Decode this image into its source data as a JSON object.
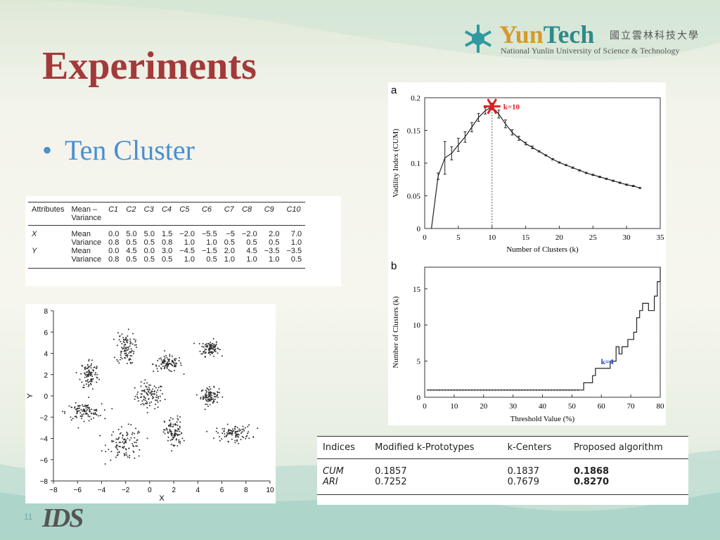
{
  "slide": {
    "title": "Experiments",
    "bullet_symbol": "•",
    "bullet_text": "Ten Cluster",
    "slide_number": "11",
    "footer_logo_text": "IDS"
  },
  "logo": {
    "yun": "Yun",
    "tech": "Tech",
    "cn_name": "國立雲林科技大學",
    "en_name": "National Yunlin University of Science & Technology"
  },
  "attributes_table": {
    "headers": [
      "Attributes",
      "Mean –\nVariance",
      "C1",
      "C2",
      "C3",
      "C4",
      "C5",
      "C6",
      "C7",
      "C8",
      "C9",
      "C10"
    ],
    "rows": [
      [
        "X",
        "Mean",
        "0.0",
        "5.0",
        "5.0",
        "1.5",
        "−2.0",
        "−5.5",
        "−5",
        "−2.0",
        "2.0",
        "7.0"
      ],
      [
        "",
        "Variance",
        "0.8",
        "0.5",
        "0.5",
        "0.8",
        "1.0",
        "1.0",
        "0.5",
        "0.5",
        "0.5",
        "1.0"
      ],
      [
        "Y",
        "Mean",
        "0.0",
        "4.5",
        "0.0",
        "3.0",
        "−4.5",
        "−1.5",
        "2.0",
        "4.5",
        "−3.5",
        "−3.5"
      ],
      [
        "",
        "Variance",
        "0.8",
        "0.5",
        "0.5",
        "0.5",
        "1.0",
        "0.5",
        "1.0",
        "1.0",
        "1.0",
        "0.5"
      ]
    ]
  },
  "comparison_table": {
    "headers": [
      "Indices",
      "Modified k-Prototypes",
      "k-Centers",
      "Proposed algorithm"
    ],
    "rows": [
      [
        "CUM",
        "0.1857",
        "0.1837",
        "0.1868"
      ],
      [
        "ARI",
        "0.7252",
        "0.7679",
        "0.8270"
      ]
    ]
  },
  "chart_data": [
    {
      "type": "scatter",
      "xlabel": "X",
      "ylabel": "Y",
      "xlim": [
        -8,
        10
      ],
      "ylim": [
        -8,
        8
      ],
      "xticks": [
        -8,
        -6,
        -4,
        -2,
        0,
        2,
        4,
        6,
        8,
        10
      ],
      "yticks": [
        -8,
        -6,
        -4,
        -2,
        0,
        2,
        4,
        6,
        8
      ],
      "clusters": [
        {
          "mx": 0.0,
          "my": 0.0,
          "sx": 0.8,
          "sy": 0.8
        },
        {
          "mx": 5.0,
          "my": 4.5,
          "sx": 0.5,
          "sy": 0.5
        },
        {
          "mx": 5.0,
          "my": 0.0,
          "sx": 0.5,
          "sy": 0.5
        },
        {
          "mx": 1.5,
          "my": 3.0,
          "sx": 0.8,
          "sy": 0.5
        },
        {
          "mx": -2.0,
          "my": -4.5,
          "sx": 1.0,
          "sy": 1.0
        },
        {
          "mx": -5.5,
          "my": -1.5,
          "sx": 1.0,
          "sy": 0.5
        },
        {
          "mx": -5.0,
          "my": 2.0,
          "sx": 0.5,
          "sy": 1.0
        },
        {
          "mx": -2.0,
          "my": 4.5,
          "sx": 0.5,
          "sy": 1.0
        },
        {
          "mx": 2.0,
          "my": -3.5,
          "sx": 0.5,
          "sy": 1.0
        },
        {
          "mx": 7.0,
          "my": -3.5,
          "sx": 1.0,
          "sy": 0.5
        }
      ]
    },
    {
      "type": "line",
      "panel_label": "a",
      "xlabel": "Number of Clusters (k)",
      "ylabel": "Vadility Index (CUM)",
      "xlim": [
        0,
        35
      ],
      "ylim": [
        0,
        0.2
      ],
      "xticks": [
        0,
        5,
        10,
        15,
        20,
        25,
        30,
        35
      ],
      "yticks": [
        "0",
        "0.05",
        "0.1",
        "0.15",
        "0.2"
      ],
      "annotation": "k=10",
      "peak": {
        "x": 10,
        "y": 0.1868
      },
      "x": [
        1,
        2,
        3,
        4,
        5,
        6,
        7,
        8,
        9,
        10,
        11,
        12,
        13,
        14,
        15,
        16,
        17,
        18,
        19,
        20,
        21,
        22,
        23,
        24,
        25,
        26,
        27,
        28,
        29,
        30,
        31,
        32
      ],
      "y": [
        0.0,
        0.08,
        0.108,
        0.115,
        0.128,
        0.14,
        0.155,
        0.17,
        0.18,
        0.1868,
        0.175,
        0.16,
        0.147,
        0.138,
        0.13,
        0.124,
        0.118,
        0.112,
        0.106,
        0.101,
        0.097,
        0.093,
        0.089,
        0.085,
        0.082,
        0.079,
        0.076,
        0.073,
        0.07,
        0.067,
        0.065,
        0.062
      ],
      "err": [
        0,
        0.005,
        0.025,
        0.01,
        0.01,
        0.008,
        0.007,
        0.006,
        0.005,
        0.005,
        0.006,
        0.006,
        0.004,
        0.003,
        0.002,
        0.002,
        0.001,
        0.001,
        0.001,
        0.001,
        0.001,
        0.001,
        0.001,
        0.001,
        0.001,
        0.001,
        0.001,
        0.001,
        0.001,
        0.001,
        0.001,
        0.001
      ]
    },
    {
      "type": "line",
      "panel_label": "b",
      "xlabel": "Threshold Value (%)",
      "ylabel": "Number of Clusters (k)",
      "xlim": [
        0,
        80
      ],
      "ylim": [
        0,
        18
      ],
      "xticks": [
        0,
        10,
        20,
        30,
        40,
        50,
        60,
        70,
        80
      ],
      "yticks": [
        0,
        5,
        10,
        15
      ],
      "annotation": "k=4",
      "annotation_point": {
        "x": 62,
        "y": 4
      },
      "x": [
        1,
        53,
        54,
        54,
        57,
        57,
        58,
        58,
        63,
        63,
        65,
        65,
        66,
        66,
        67,
        67,
        69,
        69,
        71,
        71,
        72,
        72,
        73,
        73,
        74,
        74,
        75,
        75,
        76,
        76,
        78,
        78,
        79,
        79,
        80,
        80
      ],
      "y": [
        1,
        1,
        1,
        2,
        2,
        3,
        3,
        4,
        4,
        5,
        5,
        7,
        7,
        6,
        6,
        7,
        7,
        8,
        8,
        9,
        9,
        11,
        11,
        12,
        12,
        13,
        13,
        13,
        13,
        12,
        12,
        14,
        14,
        16,
        16,
        18
      ]
    }
  ]
}
